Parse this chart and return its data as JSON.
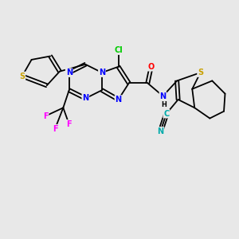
{
  "bg_color": "#e8e8e8",
  "atom_colors": {
    "C": "#000000",
    "N": "#0000ff",
    "S": "#c8a000",
    "O": "#ff0000",
    "F": "#ff00ff",
    "Cl": "#00cc00",
    "H": "#000000",
    "CN_color": "#00aaaa"
  },
  "bond_color": "#000000",
  "figsize": [
    3.0,
    3.0
  ],
  "dpi": 100,
  "lw": 1.3,
  "fs": 7.0
}
